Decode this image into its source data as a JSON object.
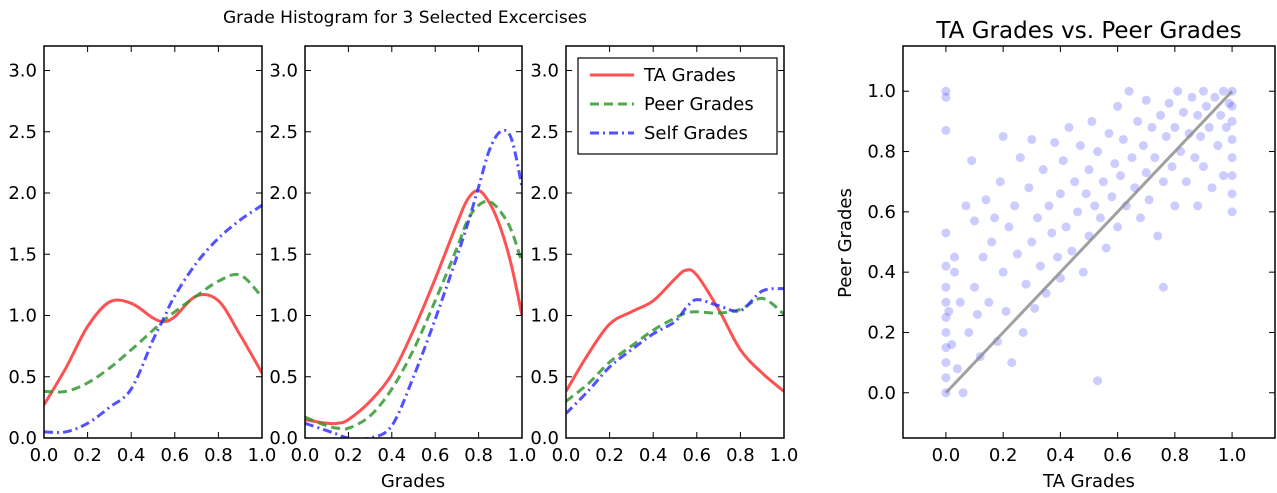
{
  "histogram_title": "Grade Histogram for 3 Selected Excercises",
  "histogram_xlabel": "Grades",
  "scatter_title": "TA Grades vs. Peer Grades",
  "scatter_xlabel": "TA Grades",
  "scatter_ylabel": "Peer Grades",
  "colors": {
    "ta": "#ff3333",
    "peer": "#339933",
    "self": "#3333ff",
    "scatter": "#0000ff",
    "diagonal": "#888888"
  },
  "chart_data": [
    {
      "type": "line",
      "title": "",
      "xlabel": "",
      "xlim": [
        0,
        1
      ],
      "ylim": [
        0,
        3.2
      ],
      "xticks": [
        "0.0",
        "0.2",
        "0.4",
        "0.6",
        "0.8",
        "1.0"
      ],
      "yticks": [
        "0.0",
        "0.5",
        "1.0",
        "1.5",
        "2.0",
        "2.5",
        "3.0"
      ],
      "x": [
        0,
        0.1,
        0.2,
        0.3,
        0.4,
        0.5,
        0.55,
        0.6,
        0.7,
        0.8,
        0.9,
        1.0
      ],
      "series": [
        {
          "name": "TA Grades",
          "values": [
            0.27,
            0.57,
            0.91,
            1.11,
            1.1,
            0.98,
            0.95,
            0.99,
            1.16,
            1.12,
            0.84,
            0.53
          ]
        },
        {
          "name": "Peer Grades",
          "values": [
            0.38,
            0.38,
            0.45,
            0.57,
            0.72,
            0.88,
            0.96,
            1.03,
            1.16,
            1.28,
            1.33,
            1.15
          ]
        },
        {
          "name": "Self Grades",
          "values": [
            0.05,
            0.05,
            0.12,
            0.25,
            0.4,
            0.8,
            0.98,
            1.16,
            1.43,
            1.63,
            1.78,
            1.9
          ]
        }
      ]
    },
    {
      "type": "line",
      "title": "",
      "xlabel": "Grades",
      "xlim": [
        0,
        1
      ],
      "ylim": [
        0,
        3.2
      ],
      "xticks": [
        "0.0",
        "0.2",
        "0.4",
        "0.6",
        "0.8",
        "1.0"
      ],
      "yticks": [
        "0.0",
        "0.5",
        "1.0",
        "1.5",
        "2.0",
        "2.5",
        "3.0"
      ],
      "x": [
        0,
        0.1,
        0.15,
        0.2,
        0.3,
        0.4,
        0.5,
        0.6,
        0.7,
        0.75,
        0.8,
        0.85,
        0.9,
        0.95,
        1.0
      ],
      "series": [
        {
          "name": "TA Grades",
          "values": [
            0.15,
            0.12,
            0.12,
            0.15,
            0.3,
            0.52,
            0.88,
            1.3,
            1.75,
            1.95,
            2.02,
            1.92,
            1.72,
            1.42,
            1.0
          ]
        },
        {
          "name": "Peer Grades",
          "values": [
            0.17,
            0.1,
            0.08,
            0.08,
            0.18,
            0.4,
            0.72,
            1.12,
            1.55,
            1.78,
            1.9,
            1.93,
            1.85,
            1.7,
            1.43
          ]
        },
        {
          "name": "Self Grades",
          "values": [
            0.12,
            0.06,
            0.03,
            0.0,
            0.0,
            0.1,
            0.5,
            0.97,
            1.48,
            1.75,
            2.05,
            2.35,
            2.5,
            2.45,
            2.05
          ]
        }
      ]
    },
    {
      "type": "line",
      "title": "",
      "xlabel": "",
      "xlim": [
        0,
        1
      ],
      "ylim": [
        0,
        3.2
      ],
      "xticks": [
        "0.0",
        "0.2",
        "0.4",
        "0.6",
        "0.8",
        "1.0"
      ],
      "yticks": [
        "0.0",
        "0.5",
        "1.0",
        "1.5",
        "2.0",
        "2.5",
        "3.0"
      ],
      "legend": [
        "TA Grades",
        "Peer Grades",
        "Self Grades"
      ],
      "legend_position": "top-right",
      "x": [
        0,
        0.1,
        0.2,
        0.3,
        0.4,
        0.5,
        0.55,
        0.6,
        0.7,
        0.8,
        0.9,
        1.0
      ],
      "series": [
        {
          "name": "TA Grades",
          "values": [
            0.38,
            0.68,
            0.93,
            1.03,
            1.12,
            1.3,
            1.37,
            1.33,
            1.05,
            0.72,
            0.53,
            0.38
          ]
        },
        {
          "name": "Peer Grades",
          "values": [
            0.3,
            0.44,
            0.62,
            0.75,
            0.88,
            0.98,
            1.02,
            1.03,
            1.02,
            1.05,
            1.14,
            1.01
          ]
        },
        {
          "name": "Self Grades",
          "values": [
            0.2,
            0.38,
            0.58,
            0.72,
            0.85,
            0.95,
            1.06,
            1.13,
            1.08,
            1.04,
            1.2,
            1.22
          ]
        }
      ]
    },
    {
      "type": "scatter",
      "title": "TA Grades vs. Peer Grades",
      "xlabel": "TA Grades",
      "ylabel": "Peer Grades",
      "xlim": [
        -0.15,
        1.15
      ],
      "ylim": [
        -0.15,
        1.15
      ],
      "xticks": [
        "0.0",
        "0.2",
        "0.4",
        "0.6",
        "0.8",
        "1.0"
      ],
      "yticks": [
        "0.0",
        "0.2",
        "0.4",
        "0.6",
        "0.8",
        "1.0"
      ],
      "diagonal_line": [
        [
          0,
          0
        ],
        [
          1,
          1
        ]
      ],
      "points": [
        [
          0.0,
          0.0
        ],
        [
          0.0,
          0.05
        ],
        [
          0.0,
          0.1
        ],
        [
          0.0,
          0.15
        ],
        [
          0.0,
          0.2
        ],
        [
          0.0,
          0.25
        ],
        [
          0.0,
          0.3
        ],
        [
          0.0,
          0.35
        ],
        [
          0.0,
          0.42
        ],
        [
          0.0,
          0.53
        ],
        [
          0.0,
          0.87
        ],
        [
          0.0,
          0.98
        ],
        [
          0.0,
          1.0
        ],
        [
          0.01,
          0.27
        ],
        [
          0.02,
          0.16
        ],
        [
          0.03,
          0.4
        ],
        [
          0.03,
          0.45
        ],
        [
          0.04,
          0.08
        ],
        [
          0.05,
          0.3
        ],
        [
          0.06,
          0.0
        ],
        [
          0.07,
          0.62
        ],
        [
          0.08,
          0.2
        ],
        [
          0.09,
          0.77
        ],
        [
          0.1,
          0.35
        ],
        [
          0.1,
          0.57
        ],
        [
          0.11,
          0.26
        ],
        [
          0.12,
          0.12
        ],
        [
          0.13,
          0.45
        ],
        [
          0.14,
          0.64
        ],
        [
          0.15,
          0.3
        ],
        [
          0.16,
          0.5
        ],
        [
          0.17,
          0.58
        ],
        [
          0.18,
          0.17
        ],
        [
          0.19,
          0.7
        ],
        [
          0.2,
          0.4
        ],
        [
          0.2,
          0.85
        ],
        [
          0.21,
          0.27
        ],
        [
          0.22,
          0.55
        ],
        [
          0.23,
          0.1
        ],
        [
          0.24,
          0.62
        ],
        [
          0.25,
          0.46
        ],
        [
          0.26,
          0.78
        ],
        [
          0.27,
          0.2
        ],
        [
          0.28,
          0.36
        ],
        [
          0.29,
          0.68
        ],
        [
          0.3,
          0.5
        ],
        [
          0.3,
          0.84
        ],
        [
          0.31,
          0.28
        ],
        [
          0.32,
          0.58
        ],
        [
          0.33,
          0.42
        ],
        [
          0.34,
          0.74
        ],
        [
          0.35,
          0.33
        ],
        [
          0.36,
          0.62
        ],
        [
          0.37,
          0.53
        ],
        [
          0.38,
          0.83
        ],
        [
          0.39,
          0.45
        ],
        [
          0.4,
          0.66
        ],
        [
          0.4,
          0.38
        ],
        [
          0.41,
          0.77
        ],
        [
          0.42,
          0.55
        ],
        [
          0.43,
          0.88
        ],
        [
          0.44,
          0.47
        ],
        [
          0.45,
          0.7
        ],
        [
          0.46,
          0.6
        ],
        [
          0.47,
          0.82
        ],
        [
          0.48,
          0.4
        ],
        [
          0.49,
          0.66
        ],
        [
          0.5,
          0.74
        ],
        [
          0.5,
          0.52
        ],
        [
          0.51,
          0.9
        ],
        [
          0.52,
          0.62
        ],
        [
          0.53,
          0.04
        ],
        [
          0.53,
          0.8
        ],
        [
          0.54,
          0.58
        ],
        [
          0.55,
          0.7
        ],
        [
          0.56,
          0.48
        ],
        [
          0.57,
          0.86
        ],
        [
          0.58,
          0.65
        ],
        [
          0.59,
          0.76
        ],
        [
          0.6,
          0.55
        ],
        [
          0.6,
          0.95
        ],
        [
          0.61,
          0.72
        ],
        [
          0.62,
          0.84
        ],
        [
          0.63,
          0.62
        ],
        [
          0.64,
          1.0
        ],
        [
          0.65,
          0.78
        ],
        [
          0.66,
          0.68
        ],
        [
          0.67,
          0.9
        ],
        [
          0.68,
          0.58
        ],
        [
          0.69,
          0.82
        ],
        [
          0.7,
          0.73
        ],
        [
          0.7,
          0.97
        ],
        [
          0.71,
          0.64
        ],
        [
          0.72,
          0.88
        ],
        [
          0.73,
          0.78
        ],
        [
          0.74,
          0.52
        ],
        [
          0.75,
          0.92
        ],
        [
          0.76,
          0.7
        ],
        [
          0.76,
          0.35
        ],
        [
          0.77,
          0.85
        ],
        [
          0.78,
          0.96
        ],
        [
          0.79,
          0.75
        ],
        [
          0.8,
          0.88
        ],
        [
          0.8,
          0.62
        ],
        [
          0.81,
          1.0
        ],
        [
          0.82,
          0.8
        ],
        [
          0.83,
          0.93
        ],
        [
          0.84,
          0.7
        ],
        [
          0.85,
          0.86
        ],
        [
          0.86,
          0.98
        ],
        [
          0.87,
          0.78
        ],
        [
          0.88,
          0.92
        ],
        [
          0.88,
          0.62
        ],
        [
          0.89,
          0.85
        ],
        [
          0.9,
          1.0
        ],
        [
          0.9,
          0.75
        ],
        [
          0.91,
          0.95
        ],
        [
          0.92,
          0.88
        ],
        [
          0.93,
          0.68
        ],
        [
          0.94,
          0.98
        ],
        [
          0.95,
          0.82
        ],
        [
          0.96,
          0.92
        ],
        [
          0.97,
          1.0
        ],
        [
          0.97,
          0.72
        ],
        [
          0.98,
          0.88
        ],
        [
          0.99,
          0.96
        ],
        [
          1.0,
          0.6
        ],
        [
          1.0,
          0.66
        ],
        [
          1.0,
          0.72
        ],
        [
          1.0,
          0.78
        ],
        [
          1.0,
          0.84
        ],
        [
          1.0,
          0.9
        ],
        [
          1.0,
          0.95
        ],
        [
          1.0,
          1.0
        ]
      ]
    }
  ]
}
